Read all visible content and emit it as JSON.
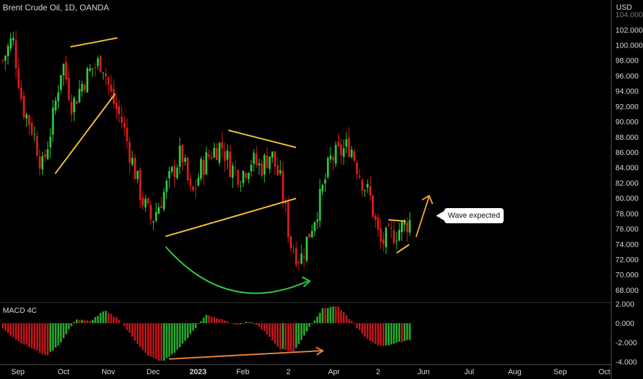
{
  "header": {
    "title": "Brent Crude Oil, 1D, OANDA",
    "currency": "USD"
  },
  "annotation": {
    "callout": "Wave expected"
  },
  "colors": {
    "up": "#2ecc40",
    "down": "#e11a1a",
    "macd_up": "#27ae2f",
    "macd_down": "#c4161c",
    "pattern": "#f4c430",
    "arc": "#32d24a",
    "divergence": "#e8823a",
    "expected": "#f0a030",
    "axis_text": "#d9d9d9"
  },
  "chart_data": [
    {
      "type": "candlestick",
      "title": "Brent Crude Oil, 1D, OANDA",
      "y_axis_label": "USD",
      "ylim": [
        67,
        105
      ],
      "y_ticks": [
        "68.000",
        "70.000",
        "72.000",
        "74.000",
        "76.000",
        "78.000",
        "80.000",
        "82.000",
        "84.000",
        "86.000",
        "88.000",
        "90.000",
        "92.000",
        "94.000",
        "96.000",
        "98.000",
        "100.000",
        "102.000"
      ],
      "x_ticks": [
        "Sep",
        "Oct",
        "Nov",
        "Dec",
        "2023",
        "Feb",
        "2",
        "Apr",
        "2",
        "Jun",
        "Jul",
        "Aug",
        "Sep",
        "Oct"
      ],
      "price_path": [
        [
          "Sep",
          98
        ],
        [
          "Sep",
          101
        ],
        [
          "Sep",
          92
        ],
        [
          "Sep",
          89
        ],
        [
          "Oct",
          84
        ],
        [
          "Oct",
          90
        ],
        [
          "Oct",
          98
        ],
        [
          "Oct",
          92
        ],
        [
          "Oct",
          95
        ],
        [
          "Nov",
          97
        ],
        [
          "Nov",
          98
        ],
        [
          "Nov",
          93
        ],
        [
          "Nov",
          90
        ],
        [
          "Dec",
          85
        ],
        [
          "Dec",
          80
        ],
        [
          "Dec",
          77
        ],
        [
          "Dec",
          80
        ],
        [
          "Dec",
          83
        ],
        [
          "2023",
          86
        ],
        [
          "2023",
          80
        ],
        [
          "2023",
          84
        ],
        [
          "2023",
          86
        ],
        [
          "Feb",
          87
        ],
        [
          "Feb",
          84
        ],
        [
          "Feb",
          83
        ],
        [
          "Feb",
          85
        ],
        [
          "2",
          84
        ],
        [
          "2",
          86
        ],
        [
          "2",
          82
        ],
        [
          "2",
          74
        ],
        [
          "2",
          72
        ],
        [
          "2",
          76
        ],
        [
          "Apr",
          80
        ],
        [
          "Apr",
          85
        ],
        [
          "Apr",
          86
        ],
        [
          "Apr",
          87
        ],
        [
          "Apr",
          83
        ],
        [
          "Apr",
          80
        ],
        [
          "2",
          74
        ],
        [
          "2",
          75
        ],
        [
          "2",
          76
        ],
        [
          "2",
          77
        ]
      ],
      "annotations": {
        "callout": "Wave expected",
        "patterns": [
          "rising wedge Oct-Nov",
          "symmetrical triangle Dec-Mar",
          "rounding bottom Dec-Mar",
          "small triangle May"
        ]
      }
    },
    {
      "type": "histogram",
      "title": "MACD 4C",
      "ylim": [
        -4,
        2
      ],
      "y_ticks": [
        "2.000",
        "0.000",
        "-2.000",
        "-4.000"
      ],
      "histogram_path": [
        [
          "Sep",
          -0.5
        ],
        [
          "Sep",
          -1.8
        ],
        [
          "Sep",
          -2.6
        ],
        [
          "Oct",
          -3.4
        ],
        [
          "Oct",
          -2.0
        ],
        [
          "Oct",
          0.4
        ],
        [
          "Nov",
          0.2
        ],
        [
          "Nov",
          1.3
        ],
        [
          "Nov",
          0.4
        ],
        [
          "Dec",
          -1.6
        ],
        [
          "Dec",
          -3.4
        ],
        [
          "Dec",
          -4.0
        ],
        [
          "2023",
          -2.8
        ],
        [
          "2023",
          -1.0
        ],
        [
          "Feb",
          0.9
        ],
        [
          "Feb",
          0.4
        ],
        [
          "Feb",
          -0.2
        ],
        [
          "2",
          0.2
        ],
        [
          "2",
          -0.8
        ],
        [
          "2",
          -2.6
        ],
        [
          "2",
          -3.0
        ],
        [
          "Apr",
          -0.6
        ],
        [
          "Apr",
          1.5
        ],
        [
          "Apr",
          1.8
        ],
        [
          "Apr",
          0.2
        ],
        [
          "2",
          -1.6
        ],
        [
          "2",
          -2.4
        ],
        [
          "2",
          -2.1
        ],
        [
          "2",
          -1.7
        ]
      ]
    }
  ]
}
